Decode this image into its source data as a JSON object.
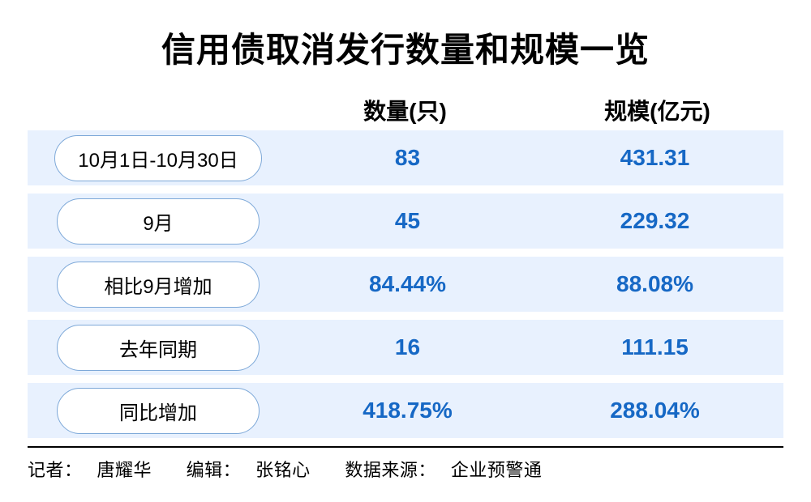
{
  "title": "信用债取消发行数量和规模一览",
  "columns": [
    "数量(只)",
    "规模(亿元)"
  ],
  "rows": [
    {
      "label": "10月1日-10月30日",
      "quantity": "83",
      "scale": "431.31"
    },
    {
      "label": "9月",
      "quantity": "45",
      "scale": "229.32"
    },
    {
      "label": "相比9月增加",
      "quantity": "84.44%",
      "scale": "88.08%"
    },
    {
      "label": "去年同期",
      "quantity": "16",
      "scale": "111.15"
    },
    {
      "label": "同比增加",
      "quantity": "418.75%",
      "scale": "288.04%"
    }
  ],
  "footer": {
    "reporter_label": "记者：",
    "reporter": "唐耀华",
    "editor_label": "编辑：",
    "editor": "张铭心",
    "source_label": "数据来源：",
    "source": "企业预警通"
  },
  "style": {
    "row_bg": "#e8f1fe",
    "pill_border": "#7da8d8",
    "value_color": "#1668c5",
    "title_color": "#000000",
    "background": "#ffffff",
    "title_fontsize": 42,
    "header_fontsize": 28,
    "value_fontsize": 28,
    "label_fontsize": 24,
    "footer_fontsize": 22
  }
}
